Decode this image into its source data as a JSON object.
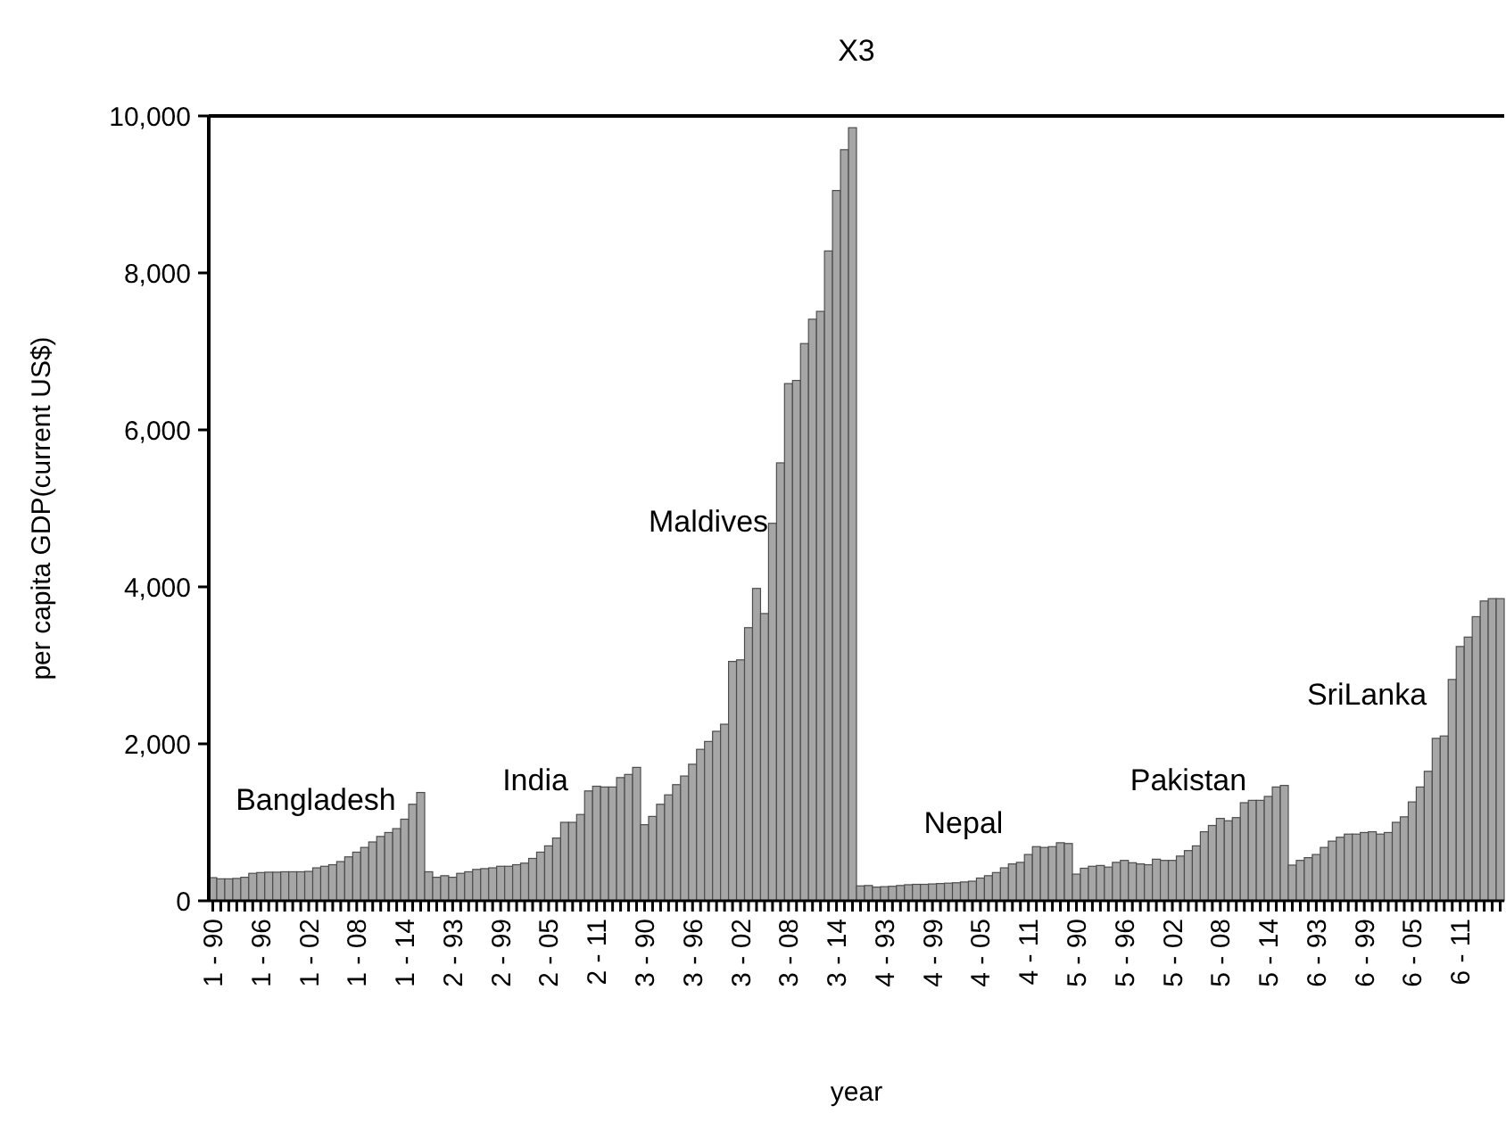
{
  "chart_data": {
    "type": "bar",
    "title": "X3",
    "xlabel": "year",
    "ylabel": "per capita GDP(current US$)",
    "categories": [
      "1 - 90",
      null,
      null,
      null,
      null,
      null,
      "1 - 96",
      null,
      null,
      null,
      null,
      null,
      "1 - 02",
      null,
      null,
      null,
      null,
      null,
      "1 - 08",
      null,
      null,
      null,
      null,
      null,
      "1 - 14",
      null,
      null,
      null,
      null,
      null,
      "2 - 93",
      null,
      null,
      null,
      null,
      null,
      "2 - 99",
      null,
      null,
      null,
      null,
      null,
      "2 - 05",
      null,
      null,
      null,
      null,
      null,
      "2 - 11",
      null,
      null,
      null,
      null,
      null,
      "3 - 90",
      null,
      null,
      null,
      null,
      null,
      "3 - 96",
      null,
      null,
      null,
      null,
      null,
      "3 - 02",
      null,
      null,
      null,
      null,
      null,
      "3 - 08",
      null,
      null,
      null,
      null,
      null,
      "3 - 14",
      null,
      null,
      null,
      null,
      null,
      "4 - 93",
      null,
      null,
      null,
      null,
      null,
      "4 - 99",
      null,
      null,
      null,
      null,
      null,
      "4 - 05",
      null,
      null,
      null,
      null,
      null,
      "4 - 11",
      null,
      null,
      null,
      null,
      null,
      "5 - 90",
      null,
      null,
      null,
      null,
      null,
      "5 - 96",
      null,
      null,
      null,
      null,
      null,
      "5 - 02",
      null,
      null,
      null,
      null,
      null,
      "5 - 08",
      null,
      null,
      null,
      null,
      null,
      "5 - 14",
      null,
      null,
      null,
      null,
      null,
      "6 - 93",
      null,
      null,
      null,
      null,
      null,
      "6 - 99",
      null,
      null,
      null,
      null,
      null,
      "6 - 05",
      null,
      null,
      null,
      null,
      null,
      "6 - 11",
      null,
      null,
      null,
      null,
      null
    ],
    "values": [
      295,
      280,
      280,
      285,
      300,
      350,
      360,
      365,
      365,
      370,
      370,
      370,
      375,
      420,
      440,
      460,
      500,
      560,
      620,
      680,
      750,
      820,
      870,
      920,
      1040,
      1230,
      1380,
      370,
      300,
      320,
      300,
      350,
      370,
      400,
      410,
      420,
      440,
      440,
      460,
      480,
      540,
      620,
      700,
      800,
      1000,
      1000,
      1100,
      1400,
      1460,
      1450,
      1450,
      1570,
      1610,
      1700,
      970,
      1075,
      1230,
      1350,
      1480,
      1590,
      1740,
      1930,
      2030,
      2160,
      2250,
      3050,
      3070,
      3480,
      3980,
      3660,
      4810,
      5580,
      6590,
      6630,
      7100,
      7410,
      7510,
      8280,
      9050,
      9570,
      9850,
      190,
      195,
      175,
      180,
      185,
      195,
      205,
      210,
      210,
      215,
      220,
      225,
      230,
      240,
      250,
      290,
      320,
      360,
      420,
      470,
      490,
      590,
      690,
      680,
      690,
      740,
      730,
      340,
      415,
      440,
      450,
      430,
      490,
      515,
      485,
      470,
      460,
      530,
      515,
      515,
      570,
      640,
      700,
      880,
      960,
      1050,
      1020,
      1060,
      1250,
      1280,
      1280,
      1330,
      1450,
      1470,
      455,
      515,
      550,
      590,
      680,
      760,
      810,
      850,
      850,
      870,
      880,
      850,
      870,
      1000,
      1070,
      1260,
      1450,
      1650,
      2070,
      2100,
      2820,
      3240,
      3360,
      3620,
      3820,
      3850,
      3850
    ],
    "color": "#a6a6a6",
    "ylim": [
      0,
      10000
    ],
    "yticks": [
      {
        "value": 0,
        "label": "0"
      },
      {
        "value": 2000,
        "label": "2,000"
      },
      {
        "value": 4000,
        "label": "4,000"
      },
      {
        "value": 6000,
        "label": "6,000"
      },
      {
        "value": 8000,
        "label": "8,000"
      },
      {
        "value": 10000,
        "label": "10,000"
      }
    ],
    "annotations": [
      "Bangladesh",
      "India",
      "Maldives",
      "Nepal",
      "Pakistan",
      "SriLanka"
    ]
  }
}
